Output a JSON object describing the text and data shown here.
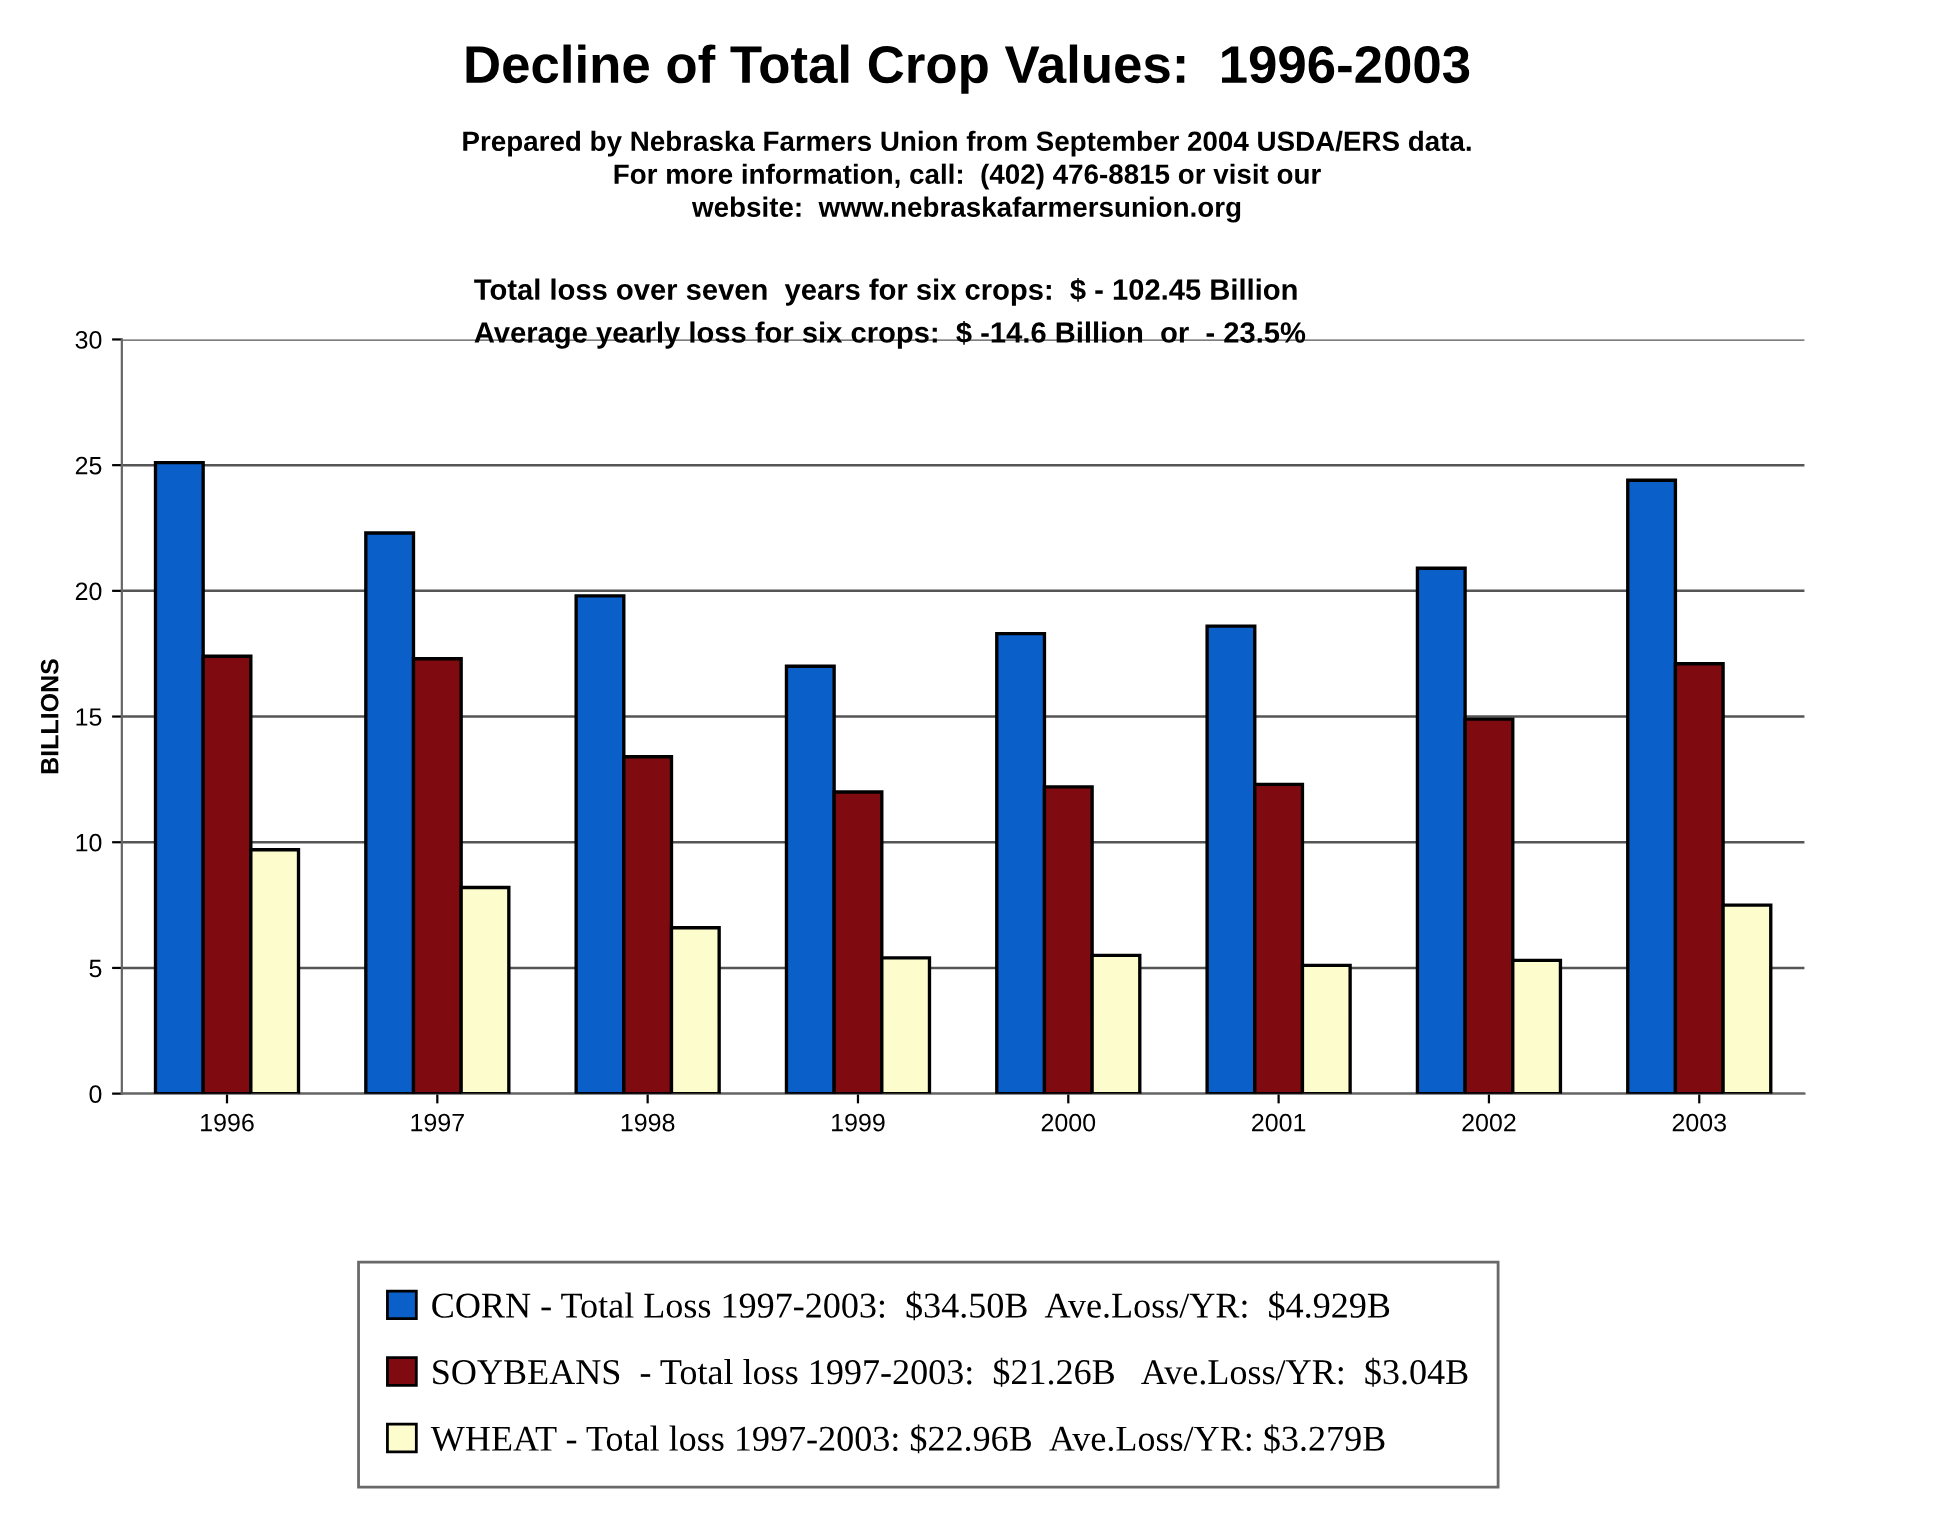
{
  "chart_data": {
    "type": "bar",
    "title": "Decline of Total Crop Values:  1996-2003",
    "subtitle": "Prepared by Nebraska Farmers Union from September 2004 USDA/ERS data.\nFor more information, call:  (402) 476-8815 or visit our\nwebsite:  www.nebraskafarmersunion.org",
    "annotations": [
      "Total loss over seven  years for six crops:  $ - 102.45 Billion",
      "Average yearly loss for six crops:  $ -14.6 Billion  or  - 23.5%"
    ],
    "ylabel": "BILLIONS",
    "categories": [
      "1996",
      "1997",
      "1998",
      "1999",
      "2000",
      "2001",
      "2002",
      "2003"
    ],
    "series": [
      {
        "name": "CORN - Total Loss 1997-2003:  $34.50B  Ave.Loss/YR:  $4.929B",
        "color": "#0b5fc8",
        "values": [
          25.1,
          22.3,
          19.8,
          17.0,
          18.3,
          18.6,
          20.9,
          24.4
        ]
      },
      {
        "name": "SOYBEANS  - Total loss 1997-2003:  $21.26B   Ave.Loss/YR:  $3.04B",
        "color": "#7f0a0f",
        "values": [
          17.4,
          17.3,
          13.4,
          12.0,
          12.2,
          12.3,
          14.9,
          17.1
        ]
      },
      {
        "name": "WHEAT - Total loss 1997-2003: $22.96B  Ave.Loss/YR: $3.279B",
        "color": "#fdfccd",
        "values": [
          9.7,
          8.2,
          6.6,
          5.4,
          5.5,
          5.1,
          5.3,
          7.5
        ]
      }
    ],
    "ylim": [
      0,
      30
    ],
    "yticks": [
      0,
      5,
      10,
      15,
      20,
      25,
      30
    ],
    "grid": "y",
    "legend": "bottom"
  }
}
